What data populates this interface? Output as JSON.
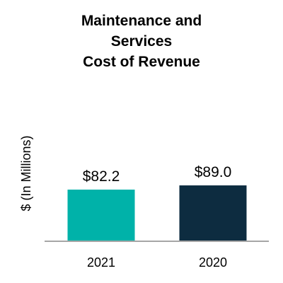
{
  "chart_data": {
    "type": "bar",
    "title_lines": [
      "Maintenance and",
      "Services",
      "Cost of Revenue"
    ],
    "ylabel": "$ (In Millions)",
    "xlabel": "",
    "categories": [
      "2021",
      "2020"
    ],
    "values": [
      82.2,
      89.0
    ],
    "data_labels": [
      "$82.2",
      "$89.0"
    ],
    "colors": [
      "#00b2a9",
      "#0d2c40"
    ],
    "axis_color": "#a6a6a6",
    "ylim": [
      0,
      100
    ],
    "grid": false,
    "legend": "none"
  }
}
